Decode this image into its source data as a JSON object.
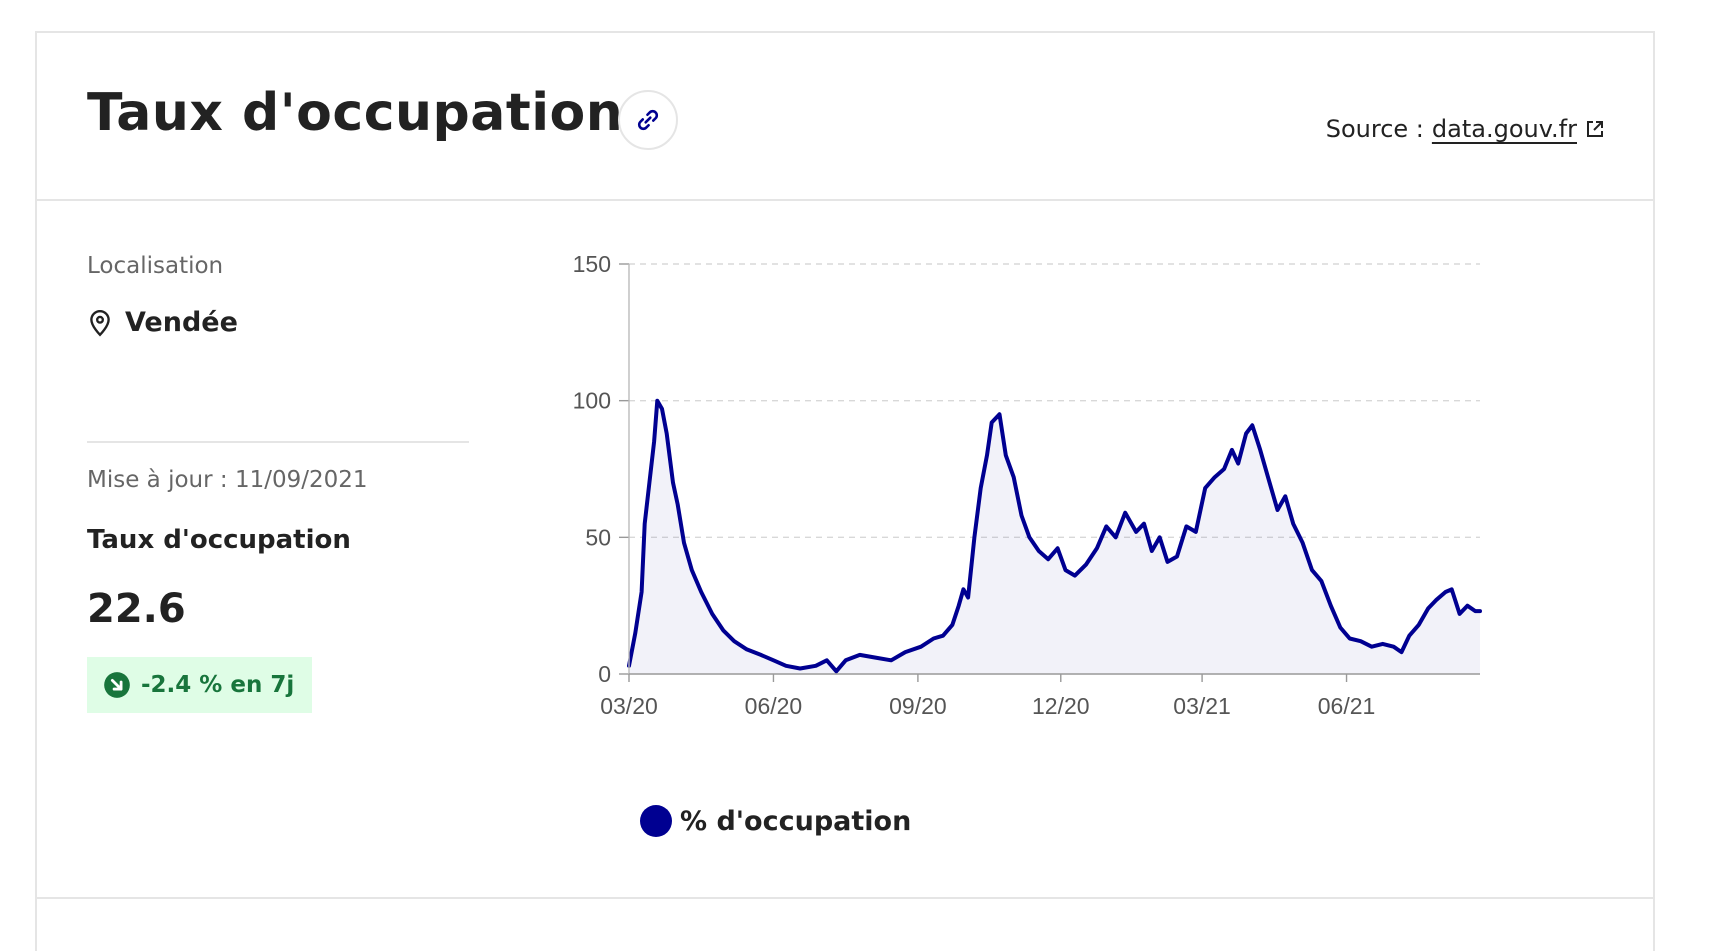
{
  "header": {
    "title": "Taux d'occupation",
    "source_label": "Source :",
    "source_link": "data.gouv.fr"
  },
  "sidebar": {
    "location_label": "Localisation",
    "location_value": "Vendée",
    "update_text": "Mise à jour : 11/09/2021",
    "metric_name": "Taux d'occupation",
    "metric_value": "22.6",
    "trend_text": "-2.4 % en 7j"
  },
  "colors": {
    "series": "#000091",
    "trend": "#18753c",
    "grid": "#d8d8d8"
  },
  "chart_data": {
    "type": "area",
    "title": "",
    "xlabel": "",
    "ylabel": "",
    "ylim": [
      0,
      150
    ],
    "yticks": [
      0,
      50,
      100,
      150
    ],
    "xlim": [
      "2020-03-18",
      "2021-09-11"
    ],
    "xticks": [
      {
        "date": "2020-03-18",
        "label": "03/20"
      },
      {
        "date": "2020-06-18",
        "label": "06/20"
      },
      {
        "date": "2020-09-18",
        "label": "09/20"
      },
      {
        "date": "2020-12-18",
        "label": "12/20"
      },
      {
        "date": "2021-03-18",
        "label": "03/21"
      },
      {
        "date": "2021-06-18",
        "label": "06/21"
      }
    ],
    "grid": true,
    "legend": "bottom-left",
    "series": [
      {
        "name": "% d'occupation",
        "points": [
          [
            "2020-03-18",
            3
          ],
          [
            "2020-03-22",
            15
          ],
          [
            "2020-03-26",
            30
          ],
          [
            "2020-03-28",
            55
          ],
          [
            "2020-03-31",
            70
          ],
          [
            "2020-04-03",
            85
          ],
          [
            "2020-04-05",
            100
          ],
          [
            "2020-04-08",
            97
          ],
          [
            "2020-04-11",
            88
          ],
          [
            "2020-04-15",
            70
          ],
          [
            "2020-04-18",
            62
          ],
          [
            "2020-04-22",
            48
          ],
          [
            "2020-04-27",
            38
          ],
          [
            "2020-05-03",
            30
          ],
          [
            "2020-05-10",
            22
          ],
          [
            "2020-05-17",
            16
          ],
          [
            "2020-05-24",
            12
          ],
          [
            "2020-06-01",
            9
          ],
          [
            "2020-06-10",
            7
          ],
          [
            "2020-06-18",
            5
          ],
          [
            "2020-06-26",
            3
          ],
          [
            "2020-07-05",
            2
          ],
          [
            "2020-07-15",
            3
          ],
          [
            "2020-07-22",
            5
          ],
          [
            "2020-07-28",
            1
          ],
          [
            "2020-08-03",
            5
          ],
          [
            "2020-08-12",
            7
          ],
          [
            "2020-08-22",
            6
          ],
          [
            "2020-09-01",
            5
          ],
          [
            "2020-09-10",
            8
          ],
          [
            "2020-09-20",
            10
          ],
          [
            "2020-09-28",
            13
          ],
          [
            "2020-10-04",
            14
          ],
          [
            "2020-10-10",
            18
          ],
          [
            "2020-10-14",
            25
          ],
          [
            "2020-10-17",
            31
          ],
          [
            "2020-10-20",
            28
          ],
          [
            "2020-10-24",
            50
          ],
          [
            "2020-10-28",
            68
          ],
          [
            "2020-11-01",
            80
          ],
          [
            "2020-11-04",
            92
          ],
          [
            "2020-11-09",
            95
          ],
          [
            "2020-11-13",
            80
          ],
          [
            "2020-11-18",
            72
          ],
          [
            "2020-11-23",
            58
          ],
          [
            "2020-11-28",
            50
          ],
          [
            "2020-12-04",
            45
          ],
          [
            "2020-12-10",
            42
          ],
          [
            "2020-12-16",
            46
          ],
          [
            "2020-12-21",
            38
          ],
          [
            "2020-12-27",
            36
          ],
          [
            "2021-01-03",
            40
          ],
          [
            "2021-01-10",
            46
          ],
          [
            "2021-01-16",
            54
          ],
          [
            "2021-01-22",
            50
          ],
          [
            "2021-01-28",
            59
          ],
          [
            "2021-02-04",
            52
          ],
          [
            "2021-02-09",
            55
          ],
          [
            "2021-02-14",
            45
          ],
          [
            "2021-02-19",
            50
          ],
          [
            "2021-02-24",
            41
          ],
          [
            "2021-03-02",
            43
          ],
          [
            "2021-03-08",
            54
          ],
          [
            "2021-03-14",
            52
          ],
          [
            "2021-03-20",
            68
          ],
          [
            "2021-03-26",
            72
          ],
          [
            "2021-04-01",
            75
          ],
          [
            "2021-04-06",
            82
          ],
          [
            "2021-04-10",
            77
          ],
          [
            "2021-04-15",
            88
          ],
          [
            "2021-04-19",
            91
          ],
          [
            "2021-04-24",
            82
          ],
          [
            "2021-04-30",
            70
          ],
          [
            "2021-05-05",
            60
          ],
          [
            "2021-05-10",
            65
          ],
          [
            "2021-05-15",
            55
          ],
          [
            "2021-05-21",
            48
          ],
          [
            "2021-05-27",
            38
          ],
          [
            "2021-06-02",
            34
          ],
          [
            "2021-06-08",
            25
          ],
          [
            "2021-06-14",
            17
          ],
          [
            "2021-06-20",
            13
          ],
          [
            "2021-06-27",
            12
          ],
          [
            "2021-07-04",
            10
          ],
          [
            "2021-07-11",
            11
          ],
          [
            "2021-07-18",
            10
          ],
          [
            "2021-07-23",
            8
          ],
          [
            "2021-07-28",
            14
          ],
          [
            "2021-08-03",
            18
          ],
          [
            "2021-08-09",
            24
          ],
          [
            "2021-08-14",
            27
          ],
          [
            "2021-08-20",
            30
          ],
          [
            "2021-08-24",
            31
          ],
          [
            "2021-08-29",
            22
          ],
          [
            "2021-09-03",
            25
          ],
          [
            "2021-09-08",
            23
          ],
          [
            "2021-09-11",
            23
          ]
        ]
      }
    ]
  }
}
